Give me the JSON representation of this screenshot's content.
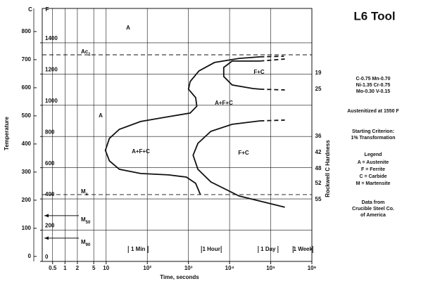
{
  "chart_data": {
    "type": "line",
    "title": "L6 Tool",
    "x_label": "Time, seconds",
    "y_label": "Temperature",
    "hardness_label": "Rockwell C Hardness",
    "y_unit": "F",
    "y2_unit": "C",
    "log_x": true,
    "grid": true,
    "color": "#111111",
    "xlim": [
      0.28,
      1000000
    ],
    "xticks": [
      0.5,
      1,
      2,
      5,
      10,
      {
        "value": 100,
        "label": "10²"
      },
      {
        "value": 1000,
        "label": "10³"
      },
      {
        "value": 10000,
        "label": "10⁴"
      },
      {
        "value": 100000,
        "label": "10⁵"
      },
      {
        "value": 1000000,
        "label": "10⁶"
      }
    ],
    "ylim": [
      0,
      1620
    ],
    "yticks": [
      0,
      200,
      400,
      600,
      800,
      1000,
      1200,
      1400
    ],
    "y2lim": [
      -17.8,
      882.2
    ],
    "y2ticks": [
      0,
      100,
      200,
      300,
      400,
      500,
      600,
      700,
      800
    ],
    "hardness_ticks": [
      {
        "value": 1206,
        "label": "19"
      },
      {
        "value": 1103,
        "label": "25"
      },
      {
        "value": 801,
        "label": "36"
      },
      {
        "value": 698,
        "label": "42"
      },
      {
        "value": 594,
        "label": "48"
      },
      {
        "value": 500,
        "label": "52"
      },
      {
        "value": 396,
        "label": "55"
      }
    ],
    "series": [
      {
        "x": [
          55000,
          17000,
          4300,
          1800,
          1100,
          1000,
          1500,
          1600,
          1100,
          330,
          69,
          21,
          12,
          9.6,
          12,
          21,
          69,
          330,
          890,
          1500,
          1950
        ],
        "values": [
          1310,
          1300,
          1274,
          1220,
          1152,
          1103,
          1049,
          994,
          950,
          927,
          896,
          846,
          788,
          711,
          644,
          590,
          563,
          554,
          540,
          500,
          428
        ],
        "dashed": false
      },
      {
        "x": [
          55000,
          210000
        ],
        "values": [
          1310,
          1314
        ],
        "dashed": true
      },
      {
        "x": [
          55000,
          11500,
          7200,
          7200,
          11500,
          37000,
          55000
        ],
        "values": [
          1283,
          1283,
          1242,
          1184,
          1130,
          1107,
          1103
        ],
        "dashed": false
      },
      {
        "x": [
          55000,
          220000
        ],
        "values": [
          1283,
          1296
        ],
        "dashed": true
      },
      {
        "x": [
          55000,
          220000
        ],
        "values": [
          1103,
          1098
        ],
        "dashed": true
      },
      {
        "x": [
          55000,
          11500,
          3500,
          1700,
          1300,
          1700,
          3500,
          17000,
          220000
        ],
        "values": [
          900,
          878,
          833,
          756,
          680,
          590,
          509,
          419,
          347
        ],
        "dashed": false
      },
      {
        "x": [
          55000,
          220000
        ],
        "values": [
          900,
          905
        ],
        "dashed": true
      }
    ],
    "reference_lines": [
      {
        "label": "Ac",
        "sub": "1",
        "value": 1323,
        "line": true
      },
      {
        "label": "M",
        "sub": "s",
        "value": 428,
        "line": true
      },
      {
        "label": "M",
        "sub": "50",
        "value": 293,
        "line": false
      },
      {
        "label": "M",
        "sub": "90",
        "value": 149,
        "line": false
      }
    ],
    "time_markers": [
      {
        "label": "1 Min",
        "value": 60
      },
      {
        "label": "1 Hour",
        "value": 3600
      },
      {
        "label": "1 Day",
        "value": 86400
      },
      {
        "label": "1 Week",
        "value": 604800
      }
    ],
    "annotations": [
      "A",
      "A",
      "A+F+C",
      "F+C",
      "A+F+C",
      "F+C"
    ]
  },
  "side_panel": {
    "composition": [
      "C-0.75  Mn-0.70",
      "Ni-1.35  Cr-0.75",
      "Mo-0.30  V-0.15"
    ],
    "austenitized": "Austenitized at 1550 F",
    "criterion": [
      "Starting Criterion:",
      "1% Transformation"
    ],
    "legend_title": "Legend",
    "legend": [
      "A = Austenite",
      "F = Ferrite",
      "C = Carbide",
      "M = Martensite"
    ],
    "source": [
      "Data from",
      "Crucible Steel Co.",
      "of America"
    ]
  }
}
